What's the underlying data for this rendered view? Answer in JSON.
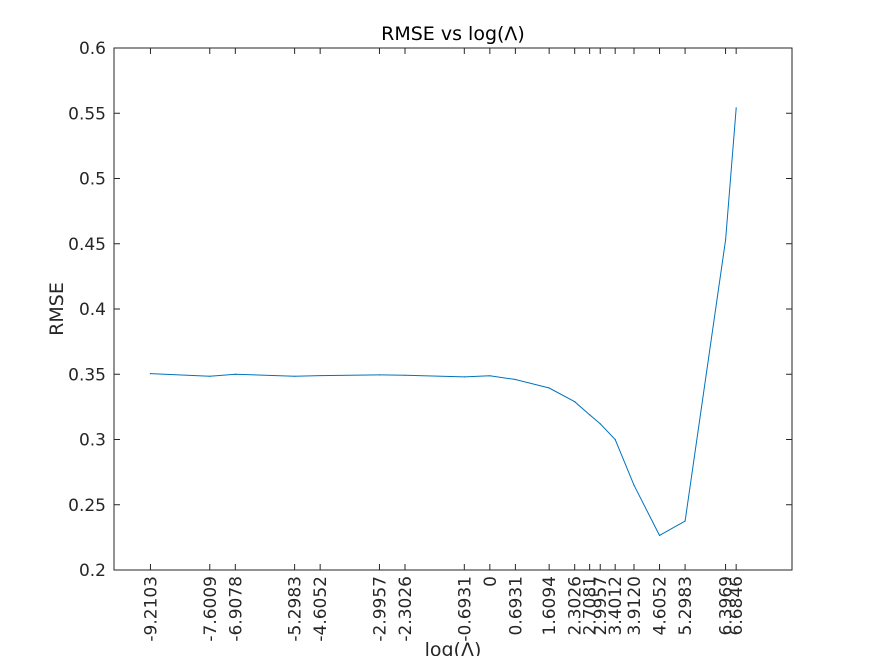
{
  "chart_data": {
    "type": "line",
    "title": "RMSE vs log(Λ)",
    "xlabel": "log(Λ)",
    "ylabel": "RMSE",
    "xlim": [
      -10.2,
      8.2
    ],
    "ylim": [
      0.2,
      0.6
    ],
    "grid": false,
    "yticks": [
      0.2,
      0.25,
      0.3,
      0.35,
      0.4,
      0.45,
      0.5,
      0.55,
      0.6
    ],
    "ytick_labels": [
      "0.2",
      "0.25",
      "0.3",
      "0.35",
      "0.4",
      "0.45",
      "0.5",
      "0.55",
      "0.6"
    ],
    "xticks": [
      -9.2103,
      -7.6009,
      -6.9078,
      -5.2983,
      -4.6052,
      -2.9957,
      -2.3026,
      -0.6931,
      0,
      0.6931,
      1.6094,
      2.3026,
      2.7081,
      2.9957,
      3.4012,
      3.912,
      4.6052,
      5.2983,
      6.3969,
      6.6846
    ],
    "xtick_labels": [
      "-9.2103",
      "-7.6009",
      "-6.9078",
      "-5.2983",
      "-4.6052",
      "-2.9957",
      "-2.3026",
      "-0.6931",
      "0",
      "0.6931",
      "1.6094",
      "2.3026",
      "2.7081",
      "2.9957",
      "3.4012",
      "3.9120",
      "4.6052",
      "5.2983",
      "6.3969",
      "6.6846"
    ],
    "series": [
      {
        "color": "#0072BD",
        "x": [
          -9.2103,
          -7.6009,
          -6.9078,
          -5.2983,
          -4.6052,
          -2.9957,
          -2.3026,
          -0.6931,
          0,
          0.6931,
          1.6094,
          2.3026,
          2.7081,
          2.9957,
          3.4012,
          3.912,
          4.6052,
          5.2983,
          6.3969,
          6.6846
        ],
        "y": [
          0.3505,
          0.3485,
          0.35,
          0.3485,
          0.349,
          0.3495,
          0.3493,
          0.348,
          0.3488,
          0.346,
          0.3395,
          0.329,
          0.319,
          0.312,
          0.3,
          0.265,
          0.2265,
          0.2375,
          0.453,
          0.554
        ]
      }
    ]
  }
}
